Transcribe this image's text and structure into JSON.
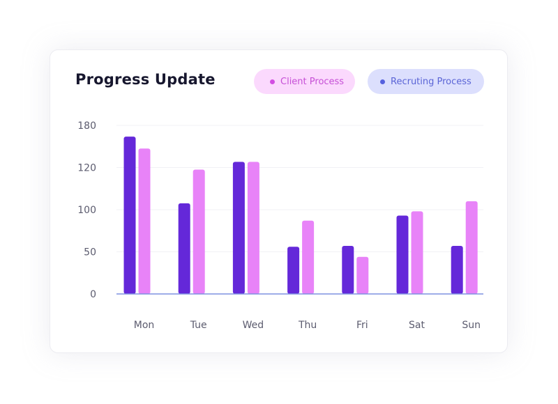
{
  "chart_data": {
    "type": "bar",
    "title": "Progress Update",
    "xlabel": "",
    "ylabel": "",
    "categories": [
      "Mon",
      "Tue",
      "Wed",
      "Thu",
      "Fri",
      "Sat",
      "Sun"
    ],
    "y_ticks": [
      "180",
      "120",
      "100",
      "50",
      "0"
    ],
    "series": [
      {
        "name": "Recruting Process",
        "color": "#6428d9",
        "values": [
          164,
          103,
          128,
          56,
          57,
          93,
          57
        ]
      },
      {
        "name": "Client Process",
        "color": "#e883f8",
        "values": [
          147,
          119,
          128,
          87,
          44,
          98,
          104
        ]
      }
    ],
    "legend_placement": "top-right",
    "grid": true
  },
  "legend": {
    "client_label": "Client Process",
    "recruiting_label": "Recruting Process"
  }
}
